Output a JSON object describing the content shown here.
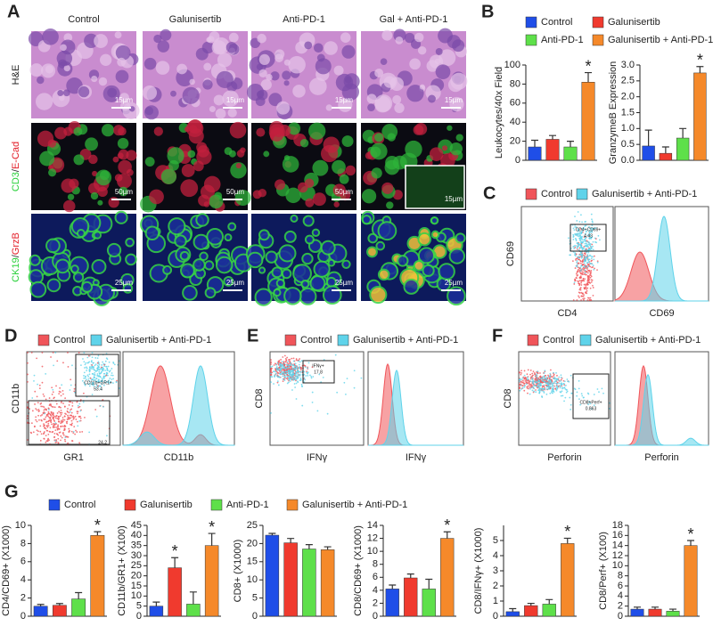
{
  "panels": {
    "A": {
      "letter": "A",
      "columns": [
        "Control",
        "Galunisertib",
        "Anti-PD-1",
        "Gal + Anti-PD-1"
      ],
      "rows": [
        {
          "label_parts": [
            "H&E"
          ],
          "scale_bar": "15µm"
        },
        {
          "label_parts": [
            "CD3",
            "/",
            "E-Cad"
          ],
          "scale_bar": "50µm",
          "inset_scale_bar": "15µm"
        },
        {
          "label_parts": [
            "CK19",
            "/",
            "GrzB"
          ],
          "scale_bar": "25µm"
        }
      ]
    },
    "B": {
      "letter": "B",
      "legend": [
        {
          "name": "Control",
          "color": "#1f4ee8"
        },
        {
          "name": "Galunisertib",
          "color": "#f03a2e"
        },
        {
          "name": "Anti-PD-1",
          "color": "#5ee04a"
        },
        {
          "name": "Galunisertib + Anti-PD-1",
          "color": "#f5892a"
        }
      ]
    },
    "C": {
      "letter": "C",
      "legend": [
        {
          "name": "Control",
          "color": "#f0555a"
        },
        {
          "name": "Galunisertib + Anti-PD-1",
          "color": "#5fd3ea"
        }
      ],
      "scatter_x": "CD4",
      "scatter_y": "CD69",
      "hist_x": "CD69",
      "gates": [
        {
          "name": "CD4+CD69+",
          "value": 4.43
        }
      ]
    },
    "D": {
      "letter": "D",
      "legend": [
        {
          "name": "Control",
          "color": "#f0555a"
        },
        {
          "name": "Galunisertib + Anti-PD-1",
          "color": "#5fd3ea"
        }
      ],
      "scatter_x": "GR1",
      "scatter_y": "CD11b",
      "hist_x": "CD11b",
      "gates": [
        {
          "name": "CD11b+GR1+",
          "value": 53.4
        },
        {
          "value": 24.2
        }
      ]
    },
    "E": {
      "letter": "E",
      "legend": [
        {
          "name": "Control",
          "color": "#f0555a"
        },
        {
          "name": "Galunisertib + Anti-PD-1",
          "color": "#5fd3ea"
        }
      ],
      "scatter_x": "IFNγ",
      "scatter_y": "CD8",
      "hist_x": "IFNγ",
      "gates": [
        {
          "name": "IFNγ+",
          "value": 17.8
        }
      ]
    },
    "F": {
      "letter": "F",
      "legend": [
        {
          "name": "Control",
          "color": "#f0555a"
        },
        {
          "name": "Galunisertib + Anti-PD-1",
          "color": "#5fd3ea"
        }
      ],
      "scatter_x": "Perforin",
      "scatter_y": "CD8",
      "hist_x": "Perforin",
      "gates": [
        {
          "name": "CD8+Perf+",
          "value": 0.863
        }
      ]
    },
    "G": {
      "letter": "G",
      "legend": [
        {
          "name": "Control",
          "color": "#1f4ee8"
        },
        {
          "name": "Galunisertib",
          "color": "#f03a2e"
        },
        {
          "name": "Anti-PD-1",
          "color": "#5ee04a"
        },
        {
          "name": "Galunisertib + Anti-PD-1",
          "color": "#f5892a"
        }
      ]
    }
  },
  "chart_data": [
    {
      "type": "bar",
      "ylabel": "Leukocytes/40x Field",
      "values": [
        14,
        22,
        14,
        82
      ],
      "errors": [
        7,
        4,
        6,
        10
      ],
      "ylim": [
        0,
        100
      ],
      "yticks": [
        0,
        20,
        40,
        60,
        80,
        100
      ],
      "annotations": [
        {
          "text": "*",
          "category": "Galunisertib + Anti-PD-1"
        }
      ]
    },
    {
      "type": "bar",
      "ylabel": "GranzymeB Expression",
      "values": [
        0.45,
        0.22,
        0.7,
        2.75
      ],
      "errors": [
        0.5,
        0.2,
        0.3,
        0.2
      ],
      "ylim": [
        0,
        3
      ],
      "yticks": [
        {
          "value": 0,
          "label": "0.0"
        },
        {
          "value": 0.5,
          "label": "0.5"
        },
        {
          "value": 1,
          "label": "1.0"
        },
        {
          "value": 1.5,
          "label": "1.5"
        },
        {
          "value": 2,
          "label": "2.0"
        },
        {
          "value": 2.5,
          "label": "2.5"
        },
        {
          "value": 3,
          "label": "3.0"
        }
      ],
      "annotations": [
        {
          "text": "*",
          "category": "Galunisertib + Anti-PD-1"
        }
      ]
    },
    {
      "type": "bar",
      "ylabel": "CD4/CD69+ (X1000)",
      "values": [
        1.1,
        1.2,
        1.9,
        8.9
      ],
      "errors": [
        0.2,
        0.2,
        0.7,
        0.4
      ],
      "ylim": [
        0,
        10
      ],
      "yticks": [
        0,
        2,
        4,
        6,
        8,
        10
      ],
      "annotations": [
        {
          "text": "*",
          "category": "Galunisertib + Anti-PD-1"
        }
      ]
    },
    {
      "type": "bar",
      "ylabel": "CD11b/GR1+ (X100)",
      "values": [
        5,
        24,
        6,
        35
      ],
      "errors": [
        2,
        5,
        6,
        6
      ],
      "ylim": [
        0,
        45
      ],
      "yticks": [
        0,
        5,
        10,
        15,
        20,
        25,
        30,
        35,
        40,
        45
      ],
      "annotations": [
        {
          "text": "*",
          "category": "Galunisertib"
        },
        {
          "text": "*",
          "category": "Galunisertib + Anti-PD-1"
        }
      ]
    },
    {
      "type": "bar",
      "ylabel": "CD8+ (X1000)",
      "values": [
        22.3,
        20.2,
        18.5,
        18.3
      ],
      "errors": [
        0.5,
        1.2,
        1.2,
        0.8
      ],
      "ylim": [
        0,
        25
      ],
      "yticks": [
        0,
        5,
        10,
        15,
        20,
        25
      ],
      "annotations": []
    },
    {
      "type": "bar",
      "ylabel": "CD8/CD69+ (X1000)",
      "values": [
        4.2,
        5.9,
        4.2,
        12
      ],
      "errors": [
        0.6,
        0.6,
        1.5,
        1
      ],
      "ylim": [
        0,
        14
      ],
      "yticks": [
        0,
        2,
        4,
        6,
        8,
        10,
        12,
        14
      ],
      "annotations": [
        {
          "text": "*",
          "category": "Galunisertib + Anti-PD-1"
        }
      ]
    },
    {
      "type": "bar",
      "ylabel": "CD8/IFNγ+ (X1000)",
      "values": [
        0.3,
        0.7,
        0.8,
        4.8
      ],
      "errors": [
        0.2,
        0.15,
        0.3,
        0.35
      ],
      "ylim": [
        0,
        6
      ],
      "yticks": [
        0,
        1,
        2,
        3,
        4,
        5
      ],
      "annotations": [
        {
          "text": "*",
          "category": "Galunisertib + Anti-PD-1"
        }
      ]
    },
    {
      "type": "bar",
      "ylabel": "CD8/Perf+ (X100)",
      "values": [
        1.4,
        1.4,
        1.0,
        14
      ],
      "errors": [
        0.4,
        0.4,
        0.4,
        1
      ],
      "ylim": [
        0,
        18
      ],
      "yticks": [
        0,
        2,
        4,
        6,
        8,
        10,
        12,
        14,
        16,
        18
      ],
      "annotations": [
        {
          "text": "*",
          "category": "Galunisertib + Anti-PD-1"
        }
      ]
    }
  ]
}
